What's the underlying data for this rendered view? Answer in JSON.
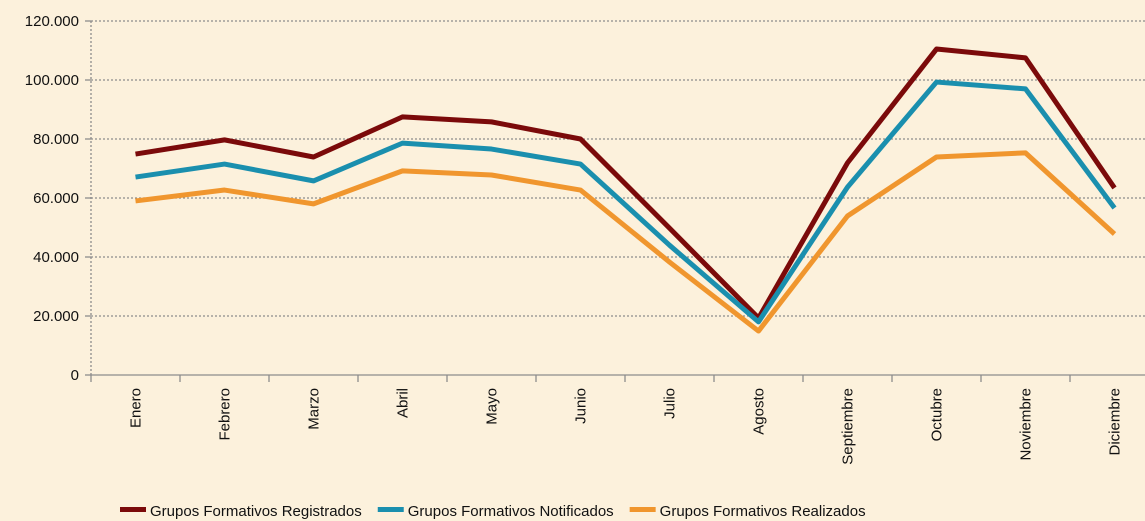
{
  "chart_data": {
    "type": "line",
    "categories": [
      "Enero",
      "Febrero",
      "Marzo",
      "Abril",
      "Mayo",
      "Junio",
      "Julio",
      "Agosto",
      "Septiembre",
      "Octubre",
      "Noviembre",
      "Diciembre"
    ],
    "series": [
      {
        "name": "Grupos Formativos Registrados",
        "color": "#7b0a0a",
        "values": [
          74900,
          79700,
          73900,
          87500,
          85800,
          80000,
          49800,
          19300,
          71900,
          110500,
          107500,
          63400
        ]
      },
      {
        "name": "Grupos Formativos Notificados",
        "color": "#1a8fae",
        "values": [
          67100,
          71500,
          65800,
          78600,
          76600,
          71500,
          44000,
          18000,
          63700,
          99300,
          97000,
          56600
        ]
      },
      {
        "name": "Grupos Formativos Realizados",
        "color": "#f0962e",
        "values": [
          59000,
          62700,
          58000,
          69200,
          67800,
          62700,
          38300,
          14900,
          53900,
          73900,
          75300,
          47800
        ]
      }
    ],
    "ylim": [
      0,
      120000
    ],
    "yticks": [
      0,
      {
        "value": 20000,
        "label": "20.000"
      },
      {
        "value": 40000,
        "label": "40.000"
      },
      {
        "value": 60000,
        "label": "60.000"
      },
      {
        "value": 80000,
        "label": "80.000"
      },
      {
        "value": 100000,
        "label": "100.000"
      },
      {
        "value": 120000,
        "label": "120.000"
      }
    ],
    "grid": true,
    "legend": "bottom"
  }
}
